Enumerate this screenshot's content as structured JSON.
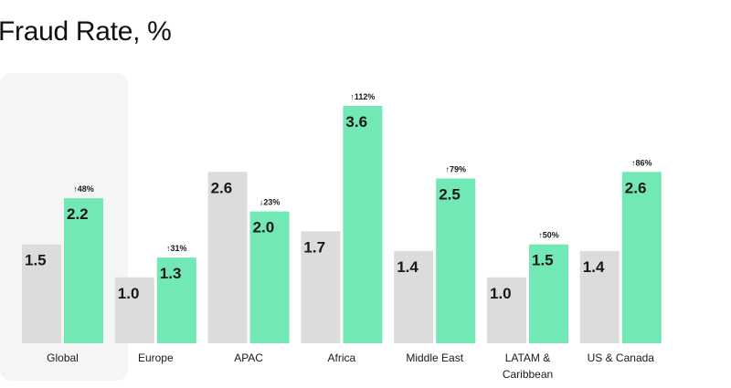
{
  "chart_data": {
    "type": "bar",
    "title": "Fraud Rate, %",
    "xlabel": "",
    "ylabel": "",
    "ylim": [
      0,
      4
    ],
    "grid": false,
    "highlighted_category": "Global",
    "categories": [
      "Global",
      "Europe",
      "APAC",
      "Africa",
      "Middle East",
      "LATAM & Caribbean",
      "US & Canada"
    ],
    "category_lines": [
      [
        "Global"
      ],
      [
        "Europe"
      ],
      [
        "APAC"
      ],
      [
        "Africa"
      ],
      [
        "Middle East"
      ],
      [
        "LATAM &",
        "Caribbean"
      ],
      [
        "US & Canada"
      ]
    ],
    "series": [
      {
        "values": [
          1.5,
          1.0,
          2.6,
          1.7,
          1.4,
          1.0,
          1.4
        ],
        "color": "#dcdcdc"
      },
      {
        "values": [
          2.2,
          1.3,
          2.0,
          3.6,
          2.5,
          1.5,
          2.6
        ],
        "color": "#72e8b4"
      }
    ],
    "value_labels": [
      [
        "1.5",
        "1.0",
        "2.6",
        "1.7",
        "1.4",
        "1.0",
        "1.4"
      ],
      [
        "2.2",
        "1.3",
        "2.0",
        "3.6",
        "2.5",
        "1.5",
        "2.6"
      ]
    ],
    "change_labels": [
      "↑48%",
      "↑31%",
      "↓23%",
      "↑112%",
      "↑79%",
      "↑50%",
      "↑86%"
    ],
    "highlight_color": "#f4f6f5"
  }
}
